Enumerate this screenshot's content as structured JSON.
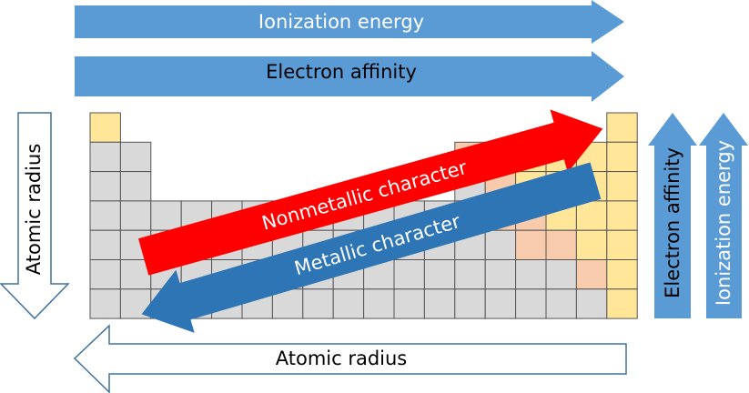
{
  "arrows": [
    {
      "label": "Ionization energy"
    },
    {
      "label": "Electron affinity"
    },
    {
      "label": "Atomic radius"
    },
    {
      "label": "Atomic radius"
    },
    {
      "label": "Electron affinity"
    },
    {
      "label": "Ionization energy"
    },
    {
      "label": "Nonmetallic character"
    },
    {
      "label": "Metallic character"
    }
  ]
}
